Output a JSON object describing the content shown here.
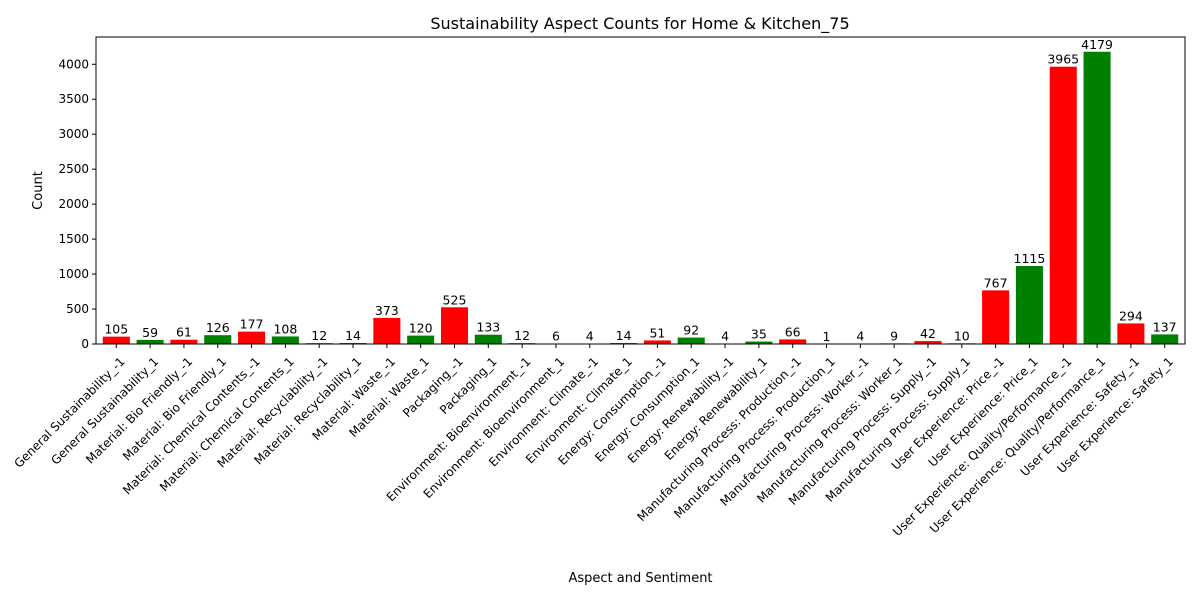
{
  "chart_data": {
    "type": "bar",
    "title": "Sustainability Aspect Counts for Home & Kitchen_75",
    "xlabel": "Aspect and Sentiment",
    "ylabel": "Count",
    "ylim": [
      0,
      4390
    ],
    "yticks": [
      0,
      500,
      1000,
      1500,
      2000,
      2500,
      3000,
      3500,
      4000
    ],
    "grid": false,
    "legend": "none",
    "colors": {
      "negative": "#ff0000",
      "positive": "#008000"
    },
    "categories": [
      "General Sustainability_-1",
      "General Sustainability_1",
      "Material: Bio Friendly_-1",
      "Material: Bio Friendly_1",
      "Material: Chemical Contents_-1",
      "Material: Chemical Contents_1",
      "Material: Recyclability_-1",
      "Material: Recyclability_1",
      "Material: Waste_-1",
      "Material: Waste_1",
      "Packaging_-1",
      "Packaging_1",
      "Environment: Bioenvironment_-1",
      "Environment: Bioenvironment_1",
      "Environment: Climate_-1",
      "Environment: Climate_1",
      "Energy: Consumption_-1",
      "Energy: Consumption_1",
      "Energy: Renewability_-1",
      "Energy: Renewability_1",
      "Manufacturing Process: Production_-1",
      "Manufacturing Process: Production_1",
      "Manufacturing Process: Worker_-1",
      "Manufacturing Process: Worker_1",
      "Manufacturing Process: Supply_-1",
      "Manufacturing Process: Supply_1",
      "User Experience: Price_-1",
      "User Experience: Price_1",
      "User Experience: Quality/Performance_-1",
      "User Experience: Quality/Performance_1",
      "User Experience: Safety_-1",
      "User Experience: Safety_1"
    ],
    "values": [
      105,
      59,
      61,
      126,
      177,
      108,
      12,
      14,
      373,
      120,
      525,
      133,
      12,
      6,
      4,
      14,
      51,
      92,
      4,
      35,
      66,
      1,
      4,
      9,
      42,
      10,
      767,
      1115,
      3965,
      4179,
      294,
      137
    ],
    "sentiments": [
      "negative",
      "positive",
      "negative",
      "positive",
      "negative",
      "positive",
      "negative",
      "positive",
      "negative",
      "positive",
      "negative",
      "positive",
      "negative",
      "positive",
      "negative",
      "positive",
      "negative",
      "positive",
      "negative",
      "positive",
      "negative",
      "positive",
      "negative",
      "positive",
      "negative",
      "positive",
      "negative",
      "positive",
      "negative",
      "positive",
      "negative",
      "positive"
    ]
  }
}
